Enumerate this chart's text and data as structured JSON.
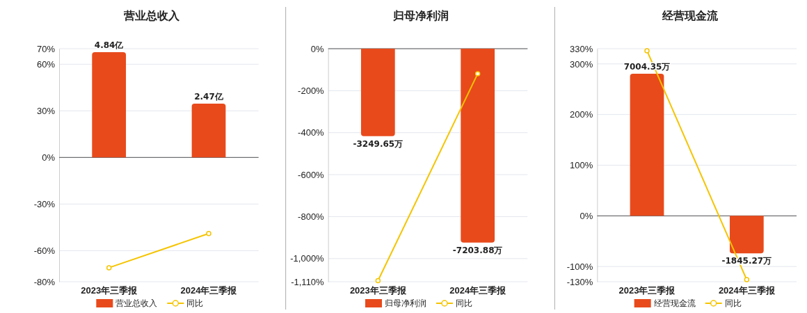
{
  "chart_data": [
    {
      "type": "bar",
      "title": "营业总收入",
      "categories": [
        "2023年三季报",
        "2024年三季报"
      ],
      "series": [
        {
          "name": "营业总收入",
          "axis": "y2",
          "color": "#e84a1c",
          "values": [
            4.84,
            2.47
          ],
          "value_labels": [
            "4.84亿",
            "2.47亿"
          ]
        },
        {
          "name": "同比",
          "type": "line",
          "color": "#f5c400",
          "values": [
            -71,
            -49
          ],
          "marker": "circle"
        }
      ],
      "ylim": [
        -80,
        70
      ],
      "yticks": [
        {
          "value": -80,
          "label": "-80%"
        },
        {
          "value": -60,
          "label": "-60%"
        },
        {
          "value": -30,
          "label": "-30%"
        },
        {
          "value": 0,
          "label": "0%"
        },
        {
          "value": 30,
          "label": "30%"
        },
        {
          "value": 60,
          "label": "60%"
        },
        {
          "value": 70,
          "label": "70%"
        }
      ],
      "y2lim": [
        -5.72,
        5.0
      ],
      "grid": "y",
      "legend": "bottom"
    },
    {
      "type": "bar",
      "title": "归母净利润",
      "categories": [
        "2023年三季报",
        "2024年三季报"
      ],
      "series": [
        {
          "name": "归母净利润",
          "axis": "y2",
          "color": "#e84a1c",
          "values": [
            -3249.65,
            -7203.88
          ],
          "value_labels": [
            "-3249.65万",
            "-7203.88万"
          ]
        },
        {
          "name": "同比",
          "type": "line",
          "color": "#f5c400",
          "values": [
            -1105,
            -119
          ],
          "marker": "circle"
        }
      ],
      "ylim": [
        -1110,
        0
      ],
      "yticks": [
        {
          "value": -1110,
          "label": "-1,110%"
        },
        {
          "value": -1000,
          "label": "-1,000%"
        },
        {
          "value": -800,
          "label": "-800%"
        },
        {
          "value": -600,
          "label": "-600%"
        },
        {
          "value": -400,
          "label": "-400%"
        },
        {
          "value": -200,
          "label": "-200%"
        },
        {
          "value": 0,
          "label": "0%"
        }
      ],
      "y2lim": [
        -8658,
        0
      ],
      "grid": "y",
      "legend": "bottom"
    },
    {
      "type": "bar",
      "title": "经营现金流",
      "categories": [
        "2023年三季报",
        "2024年三季报"
      ],
      "series": [
        {
          "name": "经营现金流",
          "axis": "y2",
          "color": "#e84a1c",
          "values": [
            7004.35,
            -1845.27
          ],
          "value_labels": [
            "7004.35万",
            "-1845.27万"
          ]
        },
        {
          "name": "同比",
          "type": "line",
          "color": "#f5c400",
          "values": [
            326,
            -126
          ],
          "marker": "circle"
        }
      ],
      "ylim": [
        -130,
        330
      ],
      "yticks": [
        {
          "value": -130,
          "label": "-130%"
        },
        {
          "value": -100,
          "label": "-100%"
        },
        {
          "value": 0,
          "label": "0%"
        },
        {
          "value": 100,
          "label": "100%"
        },
        {
          "value": 200,
          "label": "200%"
        },
        {
          "value": 300,
          "label": "300%"
        },
        {
          "value": 330,
          "label": "330%"
        }
      ],
      "y2lim": [
        -3245,
        8237
      ],
      "grid": "y",
      "legend": "bottom"
    }
  ]
}
